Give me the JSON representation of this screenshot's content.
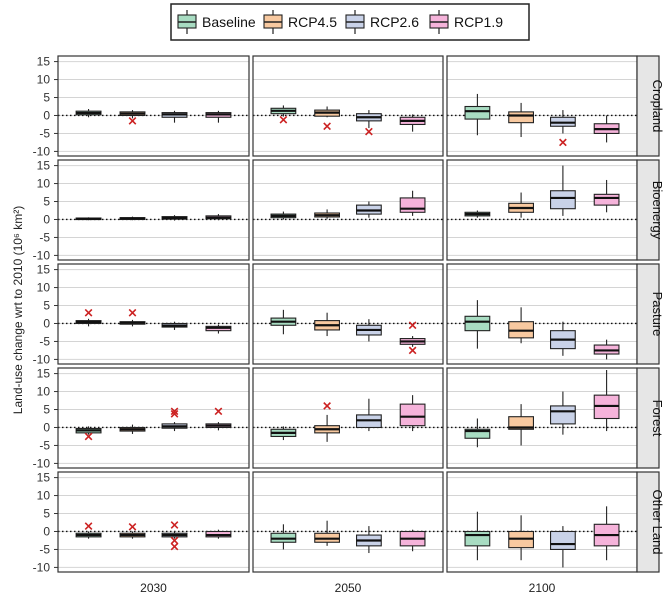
{
  "chart_data": {
    "type": "boxplot",
    "ylabel": "Land-use change wrt to 2010 (10⁶ km²)",
    "ylim": [
      -11,
      16
    ],
    "yticks": [
      -10,
      -5,
      0,
      5,
      10,
      15
    ],
    "columns": [
      "2030",
      "2050",
      "2100"
    ],
    "rows": [
      "Cropland",
      "Bioenergy",
      "Pasture",
      "Forest",
      "Other Land"
    ],
    "legend_placement": "top",
    "series": [
      {
        "name": "Baseline",
        "color": "#a8dcc2"
      },
      {
        "name": "RCP4.5",
        "color": "#f8c9a0"
      },
      {
        "name": "RCP2.6",
        "color": "#c9d2e8"
      },
      {
        "name": "RCP1.9",
        "color": "#f5b3da"
      }
    ],
    "outlier_color": "#cc2222",
    "boxes": [
      [
        [
          [
            -0.5,
            0.2,
            0.7,
            1.2,
            1.8
          ],
          [
            -0.8,
            0,
            0.5,
            1,
            1.5
          ],
          [
            -2,
            -0.5,
            0.3,
            0.8,
            1.3
          ],
          [
            -2,
            -0.5,
            0.3,
            0.8,
            1.3
          ]
        ],
        [
          [
            -0.3,
            0.5,
            1.3,
            2,
            2.8
          ],
          [
            -0.5,
            -0.2,
            0.8,
            1.5,
            2.5
          ],
          [
            -3.5,
            -1.5,
            -0.5,
            0.5,
            1.5
          ],
          [
            -4.5,
            -2.5,
            -1.5,
            -0.5,
            0.3
          ]
        ],
        [
          [
            -5.5,
            -1,
            1.2,
            2.5,
            6
          ],
          [
            -6,
            -2,
            0,
            1,
            3.5
          ],
          [
            -5,
            -3,
            -2,
            -0.5,
            1.5
          ],
          [
            -7.5,
            -5,
            -3.8,
            -2.3,
            0
          ]
        ]
      ],
      [
        [
          [
            -0.2,
            0,
            0.2,
            0.4,
            0.6
          ],
          [
            -0.2,
            0,
            0.3,
            0.5,
            0.8
          ],
          [
            -0.3,
            0.1,
            0.4,
            0.8,
            1.2
          ],
          [
            -0.2,
            0.2,
            0.5,
            1,
            1.5
          ]
        ],
        [
          [
            0,
            0.5,
            1,
            1.5,
            2.2
          ],
          [
            0.2,
            0.7,
            1.2,
            1.8,
            2.8
          ],
          [
            0.5,
            1.5,
            2.5,
            4,
            5
          ],
          [
            1,
            2,
            3,
            6,
            8
          ]
        ],
        [
          [
            0.5,
            1,
            1.5,
            2,
            2.5
          ],
          [
            0.5,
            2,
            3.2,
            4.5,
            7.5
          ],
          [
            1,
            3,
            6,
            8,
            15
          ],
          [
            2,
            4,
            6,
            7,
            11
          ]
        ]
      ],
      [
        [
          [
            -0.8,
            0,
            0.4,
            0.8,
            1.3
          ],
          [
            -0.8,
            -0.2,
            0.2,
            0.5,
            1
          ],
          [
            -1.8,
            -1,
            -0.6,
            0,
            0.5
          ],
          [
            -2.8,
            -2,
            -1.2,
            -0.8,
            -0.3
          ]
        ],
        [
          [
            -3,
            -0.5,
            0.5,
            1.5,
            3.8
          ],
          [
            -3.5,
            -1.8,
            -0.5,
            0.8,
            3
          ],
          [
            -5,
            -3.2,
            -1.8,
            -0.5,
            1.2
          ],
          [
            -6.5,
            -5.8,
            -5,
            -4.2,
            -3.5
          ]
        ],
        [
          [
            -7,
            -2,
            0.5,
            2,
            6.5
          ],
          [
            -5.5,
            -4,
            -2,
            0.5,
            4.5
          ],
          [
            -9,
            -7,
            -4.5,
            -2,
            0.5
          ],
          [
            -10,
            -8.5,
            -7.5,
            -6,
            -4.5
          ]
        ]
      ],
      [
        [
          [
            -2,
            -1.5,
            -0.8,
            -0.3,
            0.3
          ],
          [
            -1.8,
            -1,
            -0.5,
            0,
            0.8
          ],
          [
            -1,
            -0.2,
            0.3,
            1,
            1.5
          ],
          [
            -0.8,
            0,
            0.5,
            1,
            1.5
          ]
        ],
        [
          [
            -3.5,
            -2.5,
            -1.5,
            -0.5,
            0.3
          ],
          [
            -4,
            -1.5,
            -0.5,
            0.5,
            3.5
          ],
          [
            -1,
            0,
            2,
            3.5,
            8
          ],
          [
            -1,
            0.5,
            3,
            6.5,
            9
          ]
        ],
        [
          [
            -5.5,
            -3,
            -1,
            -0.5,
            2.5
          ],
          [
            -5,
            -0.5,
            0,
            3,
            6.5
          ],
          [
            -2,
            1,
            4.5,
            6,
            10
          ],
          [
            -1,
            2.5,
            6,
            9,
            16
          ]
        ]
      ],
      [
        [
          [
            -2,
            -1.5,
            -1,
            -0.5,
            0
          ],
          [
            -2,
            -1.5,
            -1,
            -0.5,
            0
          ],
          [
            -2,
            -1.5,
            -1,
            -0.5,
            0
          ],
          [
            -2,
            -1.5,
            -1,
            0,
            0.5
          ]
        ],
        [
          [
            -5,
            -3,
            -2,
            -0.5,
            2
          ],
          [
            -4,
            -3,
            -2,
            -0.5,
            3
          ],
          [
            -6,
            -4,
            -2.5,
            -1,
            1.5
          ],
          [
            -5.5,
            -4,
            -2,
            0,
            0.5
          ]
        ],
        [
          [
            -8,
            -4,
            -1,
            0,
            5.5
          ],
          [
            -8,
            -4.5,
            -2,
            0,
            4.5
          ],
          [
            -10,
            -5,
            -3.5,
            0,
            1.5
          ],
          [
            -8,
            -4,
            -1,
            2,
            7
          ]
        ]
      ]
    ],
    "outliers": [
      [
        [
          [],
          [
            -1.5
          ],
          [],
          []
        ],
        [
          [
            -1.2
          ],
          [
            -3
          ],
          [
            -4.5
          ],
          []
        ],
        [
          [],
          [],
          [
            -7.5
          ],
          []
        ]
      ],
      [
        [
          [],
          [],
          [],
          []
        ],
        [
          [],
          [],
          [],
          []
        ],
        [
          [],
          [],
          [],
          []
        ]
      ],
      [
        [
          [
            3
          ],
          [
            3
          ],
          [],
          []
        ],
        [
          [],
          [],
          [],
          [
            -0.5,
            -7.5
          ]
        ],
        [
          [],
          [],
          [],
          []
        ]
      ],
      [
        [
          [
            -2.5
          ],
          [],
          [
            3.8,
            4.5
          ],
          [
            4.5
          ]
        ],
        [
          [],
          [
            6
          ],
          [],
          []
        ],
        [
          [],
          [],
          [],
          []
        ]
      ],
      [
        [
          [
            1.5
          ],
          [
            1.3
          ],
          [
            1.8,
            -2.5,
            -4.2
          ],
          []
        ],
        [
          [],
          [],
          [],
          []
        ],
        [
          [],
          [],
          [],
          []
        ]
      ]
    ]
  }
}
